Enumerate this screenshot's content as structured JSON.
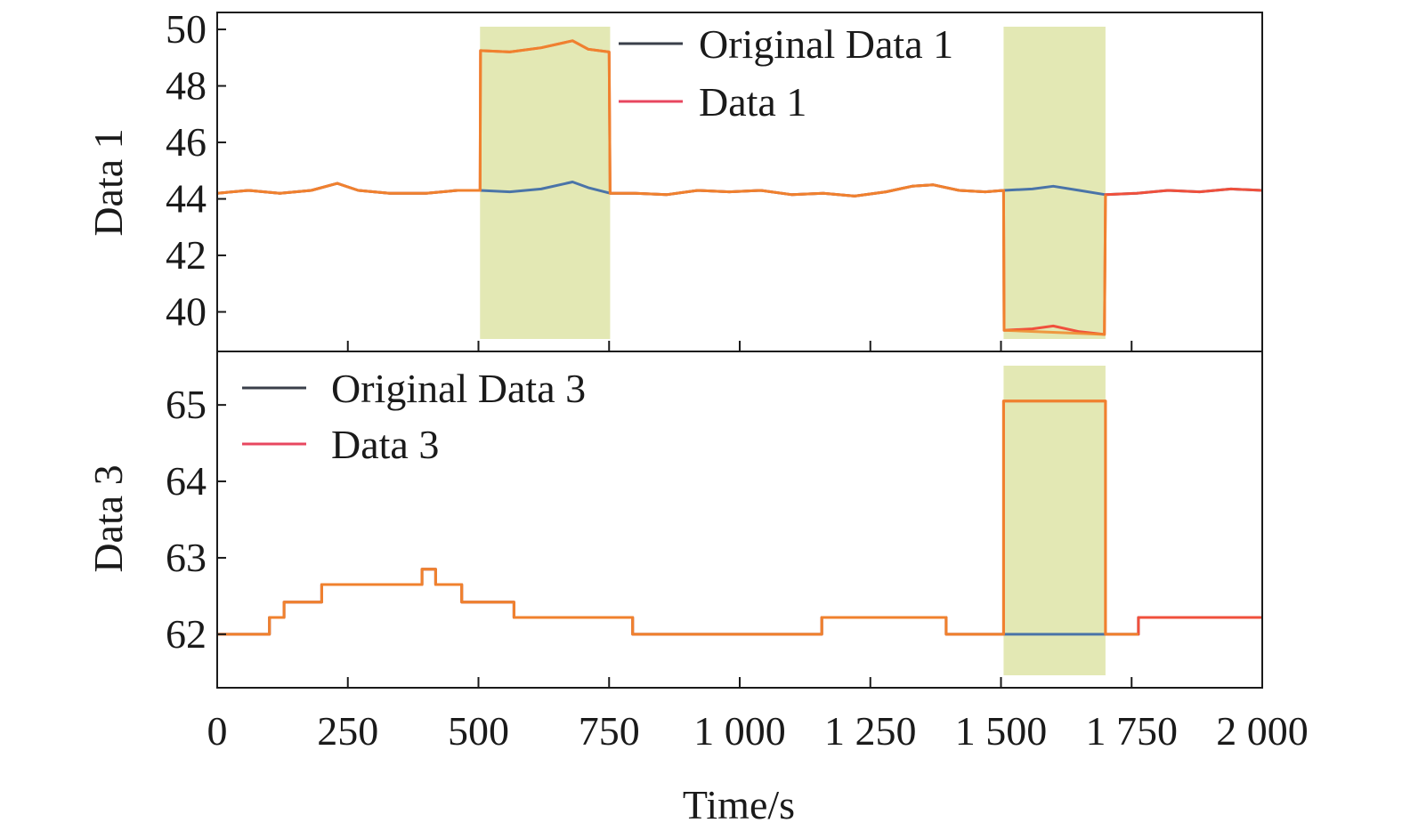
{
  "chart_data": [
    {
      "type": "line",
      "panel": "top",
      "ylabel": "Data 1",
      "ylim": [
        38.6,
        50.6
      ],
      "yticks": [
        40,
        42,
        44,
        46,
        48,
        50
      ],
      "xlim": [
        0,
        2000
      ],
      "xticks": [
        0,
        250,
        500,
        750,
        1000,
        1250,
        1500,
        1750,
        2000
      ],
      "legend_position": "top-center",
      "highlight_color": "#e3e8b4",
      "highlight_regions": [
        [
          503,
          752
        ],
        [
          1505,
          1700
        ]
      ],
      "series": [
        {
          "name": "Original Data 1",
          "color": "#4a74a8",
          "legend_color": "#3a3f4a",
          "points": [
            [
              0,
              44.2
            ],
            [
              60,
              44.3
            ],
            [
              120,
              44.2
            ],
            [
              180,
              44.3
            ],
            [
              230,
              44.55
            ],
            [
              270,
              44.3
            ],
            [
              330,
              44.2
            ],
            [
              400,
              44.2
            ],
            [
              460,
              44.3
            ],
            [
              503,
              44.3
            ],
            [
              560,
              44.25
            ],
            [
              620,
              44.35
            ],
            [
              680,
              44.6
            ],
            [
              710,
              44.4
            ],
            [
              752,
              44.2
            ],
            [
              800,
              44.2
            ],
            [
              860,
              44.15
            ],
            [
              920,
              44.3
            ],
            [
              980,
              44.25
            ],
            [
              1040,
              44.3
            ],
            [
              1100,
              44.15
            ],
            [
              1160,
              44.2
            ],
            [
              1220,
              44.1
            ],
            [
              1280,
              44.25
            ],
            [
              1330,
              44.45
            ],
            [
              1370,
              44.5
            ],
            [
              1420,
              44.3
            ],
            [
              1470,
              44.25
            ],
            [
              1505,
              44.3
            ],
            [
              1560,
              44.35
            ],
            [
              1600,
              44.45
            ],
            [
              1650,
              44.3
            ],
            [
              1700,
              44.15
            ],
            [
              1760,
              44.2
            ],
            [
              1820,
              44.3
            ],
            [
              1880,
              44.25
            ],
            [
              1940,
              44.35
            ],
            [
              2000,
              44.3
            ]
          ]
        },
        {
          "name": "Data 1",
          "color": "#f0503c",
          "legend_color": "#e8475f",
          "points": [
            [
              0,
              44.2
            ],
            [
              60,
              44.3
            ],
            [
              120,
              44.2
            ],
            [
              180,
              44.3
            ],
            [
              230,
              44.55
            ],
            [
              270,
              44.3
            ],
            [
              330,
              44.2
            ],
            [
              400,
              44.2
            ],
            [
              460,
              44.3
            ],
            [
              503,
              44.3
            ],
            [
              504,
              49.25
            ],
            [
              560,
              49.2
            ],
            [
              620,
              49.35
            ],
            [
              680,
              49.6
            ],
            [
              710,
              49.3
            ],
            [
              750,
              49.2
            ],
            [
              752,
              44.2
            ],
            [
              800,
              44.2
            ],
            [
              860,
              44.15
            ],
            [
              920,
              44.3
            ],
            [
              980,
              44.25
            ],
            [
              1040,
              44.3
            ],
            [
              1100,
              44.15
            ],
            [
              1160,
              44.2
            ],
            [
              1220,
              44.1
            ],
            [
              1280,
              44.25
            ],
            [
              1330,
              44.45
            ],
            [
              1370,
              44.5
            ],
            [
              1420,
              44.3
            ],
            [
              1470,
              44.25
            ],
            [
              1505,
              44.3
            ],
            [
              1506,
              39.35
            ],
            [
              1560,
              39.4
            ],
            [
              1600,
              39.5
            ],
            [
              1650,
              39.3
            ],
            [
              1698,
              39.2
            ],
            [
              1700,
              44.15
            ],
            [
              1760,
              44.2
            ],
            [
              1820,
              44.3
            ],
            [
              1880,
              44.25
            ],
            [
              1940,
              44.35
            ],
            [
              2000,
              44.3
            ]
          ]
        },
        {
          "name": "",
          "color": "#f08a2c",
          "opacity": 0.85,
          "points": [
            [
              0,
              44.2
            ],
            [
              60,
              44.3
            ],
            [
              120,
              44.2
            ],
            [
              180,
              44.3
            ],
            [
              230,
              44.55
            ],
            [
              270,
              44.3
            ],
            [
              330,
              44.2
            ],
            [
              400,
              44.2
            ],
            [
              460,
              44.3
            ],
            [
              503,
              44.3
            ],
            [
              504,
              49.25
            ],
            [
              560,
              49.2
            ],
            [
              620,
              49.35
            ],
            [
              680,
              49.6
            ],
            [
              710,
              49.3
            ],
            [
              750,
              49.2
            ],
            [
              752,
              44.2
            ],
            [
              800,
              44.2
            ],
            [
              860,
              44.15
            ],
            [
              920,
              44.3
            ],
            [
              980,
              44.25
            ],
            [
              1040,
              44.3
            ],
            [
              1100,
              44.15
            ],
            [
              1160,
              44.2
            ],
            [
              1220,
              44.1
            ],
            [
              1280,
              44.25
            ],
            [
              1330,
              44.45
            ],
            [
              1370,
              44.5
            ],
            [
              1420,
              44.3
            ],
            [
              1470,
              44.25
            ],
            [
              1505,
              44.3
            ],
            [
              1506,
              39.35
            ],
            [
              1698,
              39.2
            ],
            [
              1700,
              44.15
            ]
          ]
        }
      ]
    },
    {
      "type": "line",
      "panel": "bottom",
      "xlabel": "Time/s",
      "ylabel": "Data 3",
      "ylim": [
        61.3,
        65.7
      ],
      "yticks": [
        62,
        63,
        64,
        65
      ],
      "xlim": [
        0,
        2000
      ],
      "xticks": [
        0,
        250,
        500,
        750,
        1000,
        1250,
        1500,
        1750,
        2000
      ],
      "xtick_labels": [
        "0",
        "250",
        "500",
        "750",
        "1 000",
        "1 250",
        "1 500",
        "1 750",
        "2 000"
      ],
      "legend_position": "top-left",
      "highlight_color": "#e3e8b4",
      "highlight_regions": [
        [
          1505,
          1700
        ]
      ],
      "series": [
        {
          "name": "Original Data 3",
          "color": "#4a74a8",
          "legend_color": "#3a3f4a",
          "points": [
            [
              0,
              62.0
            ],
            [
              100,
              62.0
            ],
            [
              100,
              62.22
            ],
            [
              128,
              62.22
            ],
            [
              128,
              62.42
            ],
            [
              200,
              62.42
            ],
            [
              200,
              62.65
            ],
            [
              392,
              62.65
            ],
            [
              392,
              62.85
            ],
            [
              418,
              62.85
            ],
            [
              418,
              62.65
            ],
            [
              468,
              62.65
            ],
            [
              468,
              62.42
            ],
            [
              568,
              62.42
            ],
            [
              568,
              62.22
            ],
            [
              795,
              62.22
            ],
            [
              795,
              62.0
            ],
            [
              1157,
              62.0
            ],
            [
              1157,
              62.22
            ],
            [
              1395,
              62.22
            ],
            [
              1395,
              62.0
            ],
            [
              1763,
              62.0
            ],
            [
              1763,
              62.22
            ],
            [
              2000,
              62.22
            ]
          ]
        },
        {
          "name": "Data 3",
          "color": "#f0503c",
          "legend_color": "#e8475f",
          "points": [
            [
              0,
              62.0
            ],
            [
              100,
              62.0
            ],
            [
              100,
              62.22
            ],
            [
              128,
              62.22
            ],
            [
              128,
              62.42
            ],
            [
              200,
              62.42
            ],
            [
              200,
              62.65
            ],
            [
              392,
              62.65
            ],
            [
              392,
              62.85
            ],
            [
              418,
              62.85
            ],
            [
              418,
              62.65
            ],
            [
              468,
              62.65
            ],
            [
              468,
              62.42
            ],
            [
              568,
              62.42
            ],
            [
              568,
              62.22
            ],
            [
              795,
              62.22
            ],
            [
              795,
              62.0
            ],
            [
              1157,
              62.0
            ],
            [
              1157,
              62.22
            ],
            [
              1395,
              62.22
            ],
            [
              1395,
              62.0
            ],
            [
              1505,
              62.0
            ],
            [
              1505,
              65.05
            ],
            [
              1700,
              65.05
            ],
            [
              1700,
              62.0
            ],
            [
              1763,
              62.0
            ],
            [
              1763,
              62.22
            ],
            [
              2000,
              62.22
            ]
          ]
        },
        {
          "name": "",
          "color": "#f08a2c",
          "opacity": 0.85,
          "points": [
            [
              0,
              62.0
            ],
            [
              100,
              62.0
            ],
            [
              100,
              62.22
            ],
            [
              128,
              62.22
            ],
            [
              128,
              62.42
            ],
            [
              200,
              62.42
            ],
            [
              200,
              62.65
            ],
            [
              392,
              62.65
            ],
            [
              392,
              62.85
            ],
            [
              418,
              62.85
            ],
            [
              418,
              62.65
            ],
            [
              468,
              62.65
            ],
            [
              468,
              62.42
            ],
            [
              568,
              62.42
            ],
            [
              568,
              62.22
            ],
            [
              795,
              62.22
            ],
            [
              795,
              62.0
            ],
            [
              1157,
              62.0
            ],
            [
              1157,
              62.22
            ],
            [
              1395,
              62.22
            ],
            [
              1395,
              62.0
            ],
            [
              1505,
              62.0
            ],
            [
              1505,
              65.05
            ],
            [
              1700,
              65.05
            ],
            [
              1700,
              62.0
            ],
            [
              1763,
              62.0
            ]
          ]
        }
      ]
    }
  ]
}
